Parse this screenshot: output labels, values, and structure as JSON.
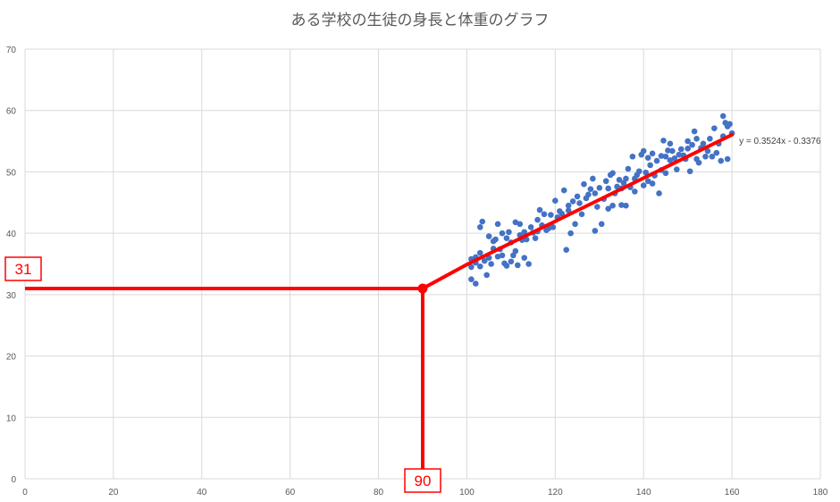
{
  "chart_data": {
    "type": "scatter",
    "title": "ある学校の生徒の身長と体重のグラフ",
    "xlabel": "",
    "ylabel": "",
    "xlim": [
      0,
      180
    ],
    "ylim": [
      0,
      70
    ],
    "x_ticks": [
      "0",
      "20",
      "40",
      "60",
      "80",
      "100",
      "120",
      "140",
      "160",
      "180"
    ],
    "y_ticks": [
      "0",
      "10",
      "20",
      "30",
      "40",
      "50",
      "60",
      "70"
    ],
    "grid": true,
    "marker_color": "#4472c4",
    "trendline_color": "#ff0000",
    "trendline": {
      "slope": 0.3524,
      "intercept": -0.3376,
      "x_range": [
        100,
        160
      ],
      "equation": "y = 0.3524x - 0.3376"
    },
    "projection": {
      "x": 90,
      "y": 31,
      "x_label": "90",
      "y_label": "31"
    },
    "points": [
      [
        101,
        35.8
      ],
      [
        101,
        34.5
      ],
      [
        101,
        32.5
      ],
      [
        102,
        36.1
      ],
      [
        102,
        31.8
      ],
      [
        102,
        35.2
      ],
      [
        103,
        34.6
      ],
      [
        103,
        36.8
      ],
      [
        103,
        41
      ],
      [
        103.5,
        41.9
      ],
      [
        104,
        35.5
      ],
      [
        104.5,
        33.2
      ],
      [
        105,
        39.5
      ],
      [
        105,
        36
      ],
      [
        105.5,
        35
      ],
      [
        106,
        38.7
      ],
      [
        106,
        37.5
      ],
      [
        106.5,
        39
      ],
      [
        107,
        41.5
      ],
      [
        107,
        36.2
      ],
      [
        107.5,
        37.4
      ],
      [
        108,
        40
      ],
      [
        108,
        36.4
      ],
      [
        108.5,
        35.1
      ],
      [
        109,
        34.7
      ],
      [
        109,
        39.2
      ],
      [
        109.5,
        40.2
      ],
      [
        110,
        38.5
      ],
      [
        110,
        35.4
      ],
      [
        110.5,
        36.4
      ],
      [
        111,
        41.8
      ],
      [
        111,
        37.1
      ],
      [
        111.5,
        34.8
      ],
      [
        112,
        39.7
      ],
      [
        112,
        41.5
      ],
      [
        112.5,
        38.9
      ],
      [
        113,
        36
      ],
      [
        113,
        40.2
      ],
      [
        113.5,
        39
      ],
      [
        114,
        35
      ],
      [
        114.5,
        41
      ],
      [
        115,
        40.1
      ],
      [
        115.5,
        39.2
      ],
      [
        116,
        40.3
      ],
      [
        116,
        42.2
      ],
      [
        116.5,
        43.8
      ],
      [
        117,
        41.3
      ],
      [
        117.5,
        43.1
      ],
      [
        118,
        40.5
      ],
      [
        118.5,
        40.8
      ],
      [
        119,
        43
      ],
      [
        119.5,
        41
      ],
      [
        120,
        45.3
      ],
      [
        120.5,
        42.6
      ],
      [
        121,
        43.6
      ],
      [
        121.5,
        43.2
      ],
      [
        122,
        47
      ],
      [
        122.5,
        37.3
      ],
      [
        123,
        43.7
      ],
      [
        123,
        44.5
      ],
      [
        123.5,
        40
      ],
      [
        124,
        45.2
      ],
      [
        124.5,
        41.5
      ],
      [
        125,
        46
      ],
      [
        125.5,
        44.9
      ],
      [
        126,
        43.1
      ],
      [
        126.5,
        48
      ],
      [
        127,
        45.7
      ],
      [
        127.5,
        46.3
      ],
      [
        128,
        47.2
      ],
      [
        128.5,
        48.9
      ],
      [
        129,
        46.5
      ],
      [
        129,
        40.4
      ],
      [
        129.5,
        44.3
      ],
      [
        130,
        47.4
      ],
      [
        130.5,
        41.5
      ],
      [
        131,
        45.6
      ],
      [
        131.5,
        48.5
      ],
      [
        132,
        47.3
      ],
      [
        132,
        44
      ],
      [
        132.5,
        49.5
      ],
      [
        133,
        49.8
      ],
      [
        133,
        44.5
      ],
      [
        133.5,
        46.5
      ],
      [
        134,
        47.6
      ],
      [
        134.5,
        48.7
      ],
      [
        135,
        47.3
      ],
      [
        135,
        44.6
      ],
      [
        135.5,
        48.2
      ],
      [
        136,
        48.9
      ],
      [
        136,
        44.5
      ],
      [
        136.5,
        50.5
      ],
      [
        137,
        47.5
      ],
      [
        137.5,
        52.5
      ],
      [
        138,
        46.8
      ],
      [
        138,
        48.9
      ],
      [
        138.5,
        49.5
      ],
      [
        139,
        50.1
      ],
      [
        139.5,
        52.8
      ],
      [
        140,
        53.4
      ],
      [
        140,
        47.8
      ],
      [
        140.5,
        49.9
      ],
      [
        141,
        48.5
      ],
      [
        141,
        52.3
      ],
      [
        141.5,
        51.1
      ],
      [
        142,
        48.1
      ],
      [
        142,
        53
      ],
      [
        142.5,
        49.4
      ],
      [
        143,
        51.8
      ],
      [
        143.5,
        46.5
      ],
      [
        144,
        52.6
      ],
      [
        144,
        50.3
      ],
      [
        144.5,
        55.1
      ],
      [
        145,
        52.5
      ],
      [
        145,
        49.8
      ],
      [
        145.5,
        53.5
      ],
      [
        146,
        54.6
      ],
      [
        146,
        51.9
      ],
      [
        146.5,
        53.4
      ],
      [
        147,
        52.2
      ],
      [
        147.5,
        50.4
      ],
      [
        148,
        52.8
      ],
      [
        148.5,
        53.7
      ],
      [
        149,
        52.7
      ],
      [
        149.5,
        52.1
      ],
      [
        150,
        53.8
      ],
      [
        150,
        55
      ],
      [
        150.5,
        50.1
      ],
      [
        151,
        54.4
      ],
      [
        151.5,
        56.6
      ],
      [
        152,
        52.1
      ],
      [
        152,
        55.4
      ],
      [
        152.5,
        51.5
      ],
      [
        153,
        53.9
      ],
      [
        153.5,
        54.6
      ],
      [
        154,
        52.5
      ],
      [
        154.5,
        53.4
      ],
      [
        155,
        55.4
      ],
      [
        155.5,
        52.5
      ],
      [
        156,
        57.1
      ],
      [
        156.5,
        53.1
      ],
      [
        157,
        54.6
      ],
      [
        157.5,
        51.8
      ],
      [
        158,
        59.1
      ],
      [
        158,
        55.8
      ],
      [
        158.5,
        58
      ],
      [
        159,
        57.4
      ],
      [
        159,
        52.1
      ],
      [
        159.5,
        57.8
      ],
      [
        160,
        56.3
      ]
    ]
  }
}
